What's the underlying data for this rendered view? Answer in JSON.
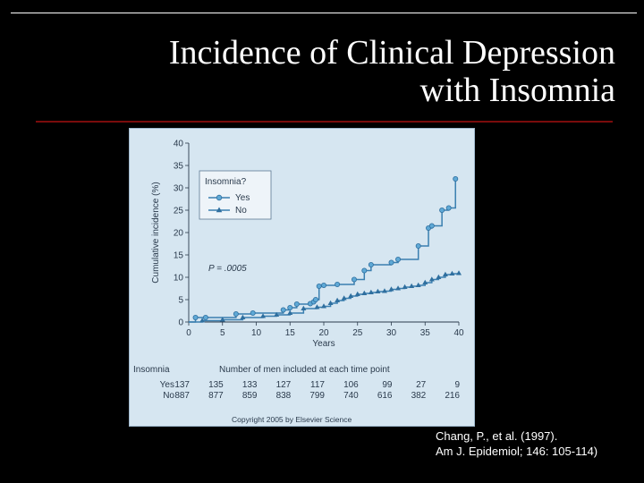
{
  "slide": {
    "title_line1": "Incidence of Clinical Depression",
    "title_line2": "with Insomnia",
    "citation_line1": "Chang, P., et al. (1997).",
    "citation_line2": "Am J. Epidemiol; 146: 105-114)"
  },
  "chart_data": {
    "type": "line",
    "ylabel": "Cumulative incidence (%)",
    "xlabel": "Years",
    "xlim": [
      0,
      40
    ],
    "ylim": [
      0,
      40
    ],
    "xticks": [
      0,
      5,
      10,
      15,
      20,
      25,
      30,
      35,
      40
    ],
    "yticks": [
      0,
      5,
      10,
      15,
      20,
      25,
      30,
      35,
      40
    ],
    "grid": false,
    "legend": {
      "title": "Insomnia?",
      "position": "top-left",
      "entries": [
        "Yes",
        "No"
      ]
    },
    "annotation": "P = .0005",
    "copyright": "Copyright 2005 by Elsevier Science",
    "series": [
      {
        "name": "Yes",
        "step": true,
        "marker": "circle",
        "color": "#3a7fb0",
        "points": [
          [
            0,
            0
          ],
          [
            1,
            1
          ],
          [
            2.5,
            1
          ],
          [
            7,
            1.8
          ],
          [
            9.5,
            2
          ],
          [
            14,
            2.7
          ],
          [
            15,
            3.2
          ],
          [
            16,
            4
          ],
          [
            18,
            4.1
          ],
          [
            18.5,
            4.5
          ],
          [
            18.8,
            5
          ],
          [
            19.3,
            8
          ],
          [
            20,
            8.2
          ],
          [
            22,
            8.4
          ],
          [
            24.5,
            9.5
          ],
          [
            26,
            11.5
          ],
          [
            27,
            12.8
          ],
          [
            30,
            13.3
          ],
          [
            31,
            14
          ],
          [
            34,
            17
          ],
          [
            35.5,
            21
          ],
          [
            36,
            21.5
          ],
          [
            37.5,
            25
          ],
          [
            38.5,
            25.5
          ],
          [
            39.5,
            32
          ]
        ]
      },
      {
        "name": "No",
        "step": true,
        "marker": "triangle",
        "color": "#3a7fb0",
        "points": [
          [
            0,
            0
          ],
          [
            2,
            0.3
          ],
          [
            5,
            0.5
          ],
          [
            8,
            1
          ],
          [
            11,
            1.3
          ],
          [
            13,
            1.6
          ],
          [
            15,
            2
          ],
          [
            17,
            3
          ],
          [
            19,
            3.3
          ],
          [
            20,
            3.5
          ],
          [
            21,
            4.2
          ],
          [
            22,
            4.8
          ],
          [
            23,
            5.3
          ],
          [
            24,
            5.8
          ],
          [
            25,
            6.2
          ],
          [
            26,
            6.4
          ],
          [
            27,
            6.6
          ],
          [
            28,
            6.8
          ],
          [
            29,
            6.9
          ],
          [
            30,
            7.3
          ],
          [
            31,
            7.5
          ],
          [
            32,
            7.8
          ],
          [
            33,
            8
          ],
          [
            34,
            8.2
          ],
          [
            35,
            8.8
          ],
          [
            36,
            9.5
          ],
          [
            37,
            10
          ],
          [
            38,
            10.6
          ],
          [
            39,
            10.8
          ],
          [
            40,
            10.9
          ]
        ]
      }
    ],
    "at_risk": {
      "row_label_header": "Insomnia",
      "header": "Number of men included at each time point",
      "years": [
        0,
        5,
        10,
        15,
        20,
        25,
        30,
        35,
        40
      ],
      "rows": [
        {
          "label": "Yes",
          "values": [
            "137",
            "135",
            "133",
            "127",
            "117",
            "106",
            "99",
            "27",
            "9"
          ]
        },
        {
          "label": "No",
          "values": [
            "887",
            "877",
            "859",
            "838",
            "799",
            "740",
            "616",
            "382",
            "216"
          ]
        }
      ]
    }
  }
}
